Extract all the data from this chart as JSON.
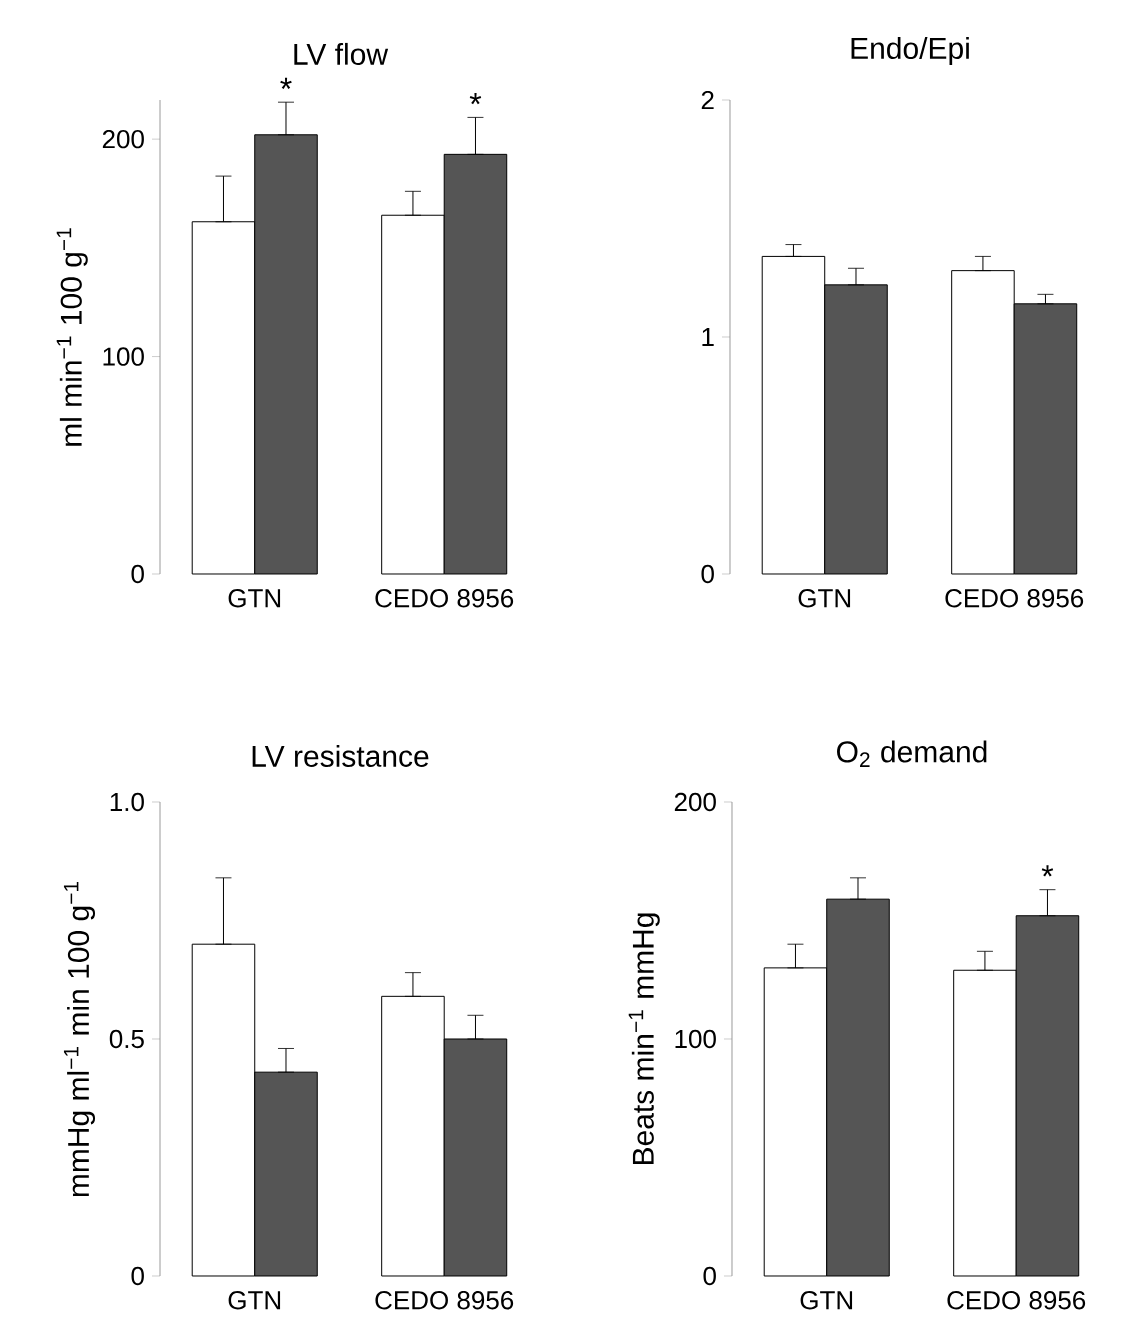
{
  "chart_data": [
    {
      "type": "bar",
      "title": "LV flow",
      "ylabel": "ml min$^{−1}$ 100 g$^{−1}$",
      "categories": [
        "GTN",
        "CEDO 8956"
      ],
      "series": [
        {
          "color": "#ffffff",
          "values": [
            162,
            165
          ],
          "errors": [
            [
              162,
              183
            ],
            [
              165,
              176
            ]
          ]
        },
        {
          "color": "#555555",
          "values": [
            202,
            193
          ],
          "errors": [
            [
              202,
              217
            ],
            [
              193,
              210
            ]
          ],
          "value_labels": [
            "*",
            "*"
          ]
        }
      ],
      "ylim": [
        0,
        218
      ],
      "yticks": [
        0,
        100,
        200
      ]
    },
    {
      "type": "bar",
      "title": "Endo/Epi",
      "categories": [
        "GTN",
        "CEDO 8956"
      ],
      "series": [
        {
          "color": "#ffffff",
          "values": [
            1.34,
            1.28
          ],
          "errors": [
            [
              1.34,
              1.39
            ],
            [
              1.28,
              1.34
            ]
          ]
        },
        {
          "color": "#555555",
          "values": [
            1.22,
            1.14
          ],
          "errors": [
            [
              1.22,
              1.29
            ],
            [
              1.14,
              1.18
            ]
          ]
        }
      ],
      "ylim": [
        0,
        2
      ],
      "yticks": [
        0,
        1,
        2
      ]
    },
    {
      "type": "bar",
      "title": "LV resistance",
      "ylabel": "mmHg ml$^{−1}$ min 100 g$^{−1}$",
      "categories": [
        "GTN",
        "CEDO 8956"
      ],
      "series": [
        {
          "color": "#ffffff",
          "values": [
            0.7,
            0.59
          ],
          "errors": [
            [
              0.7,
              0.84
            ],
            [
              0.59,
              0.64
            ]
          ]
        },
        {
          "color": "#555555",
          "values": [
            0.43,
            0.5
          ],
          "errors": [
            [
              0.43,
              0.48
            ],
            [
              0.5,
              0.55
            ]
          ]
        }
      ],
      "ylim": [
        0,
        1
      ],
      "yticks": [
        0,
        0.5,
        {
          "value": 1,
          "label": "1.0"
        }
      ]
    },
    {
      "type": "bar",
      "title": "O$_{2}$ demand",
      "ylabel": "Beats min$^{−1}$ mmHg",
      "categories": [
        "GTN",
        "CEDO 8956"
      ],
      "series": [
        {
          "color": "#ffffff",
          "values": [
            130,
            129
          ],
          "errors": [
            [
              130,
              140
            ],
            [
              129,
              137
            ]
          ]
        },
        {
          "color": "#555555",
          "values": [
            159,
            152
          ],
          "errors": [
            [
              159,
              168
            ],
            [
              152,
              163
            ]
          ],
          "value_labels": [
            null,
            "*"
          ]
        }
      ],
      "ylim": [
        0,
        200
      ],
      "yticks": [
        0,
        100,
        200
      ]
    }
  ]
}
